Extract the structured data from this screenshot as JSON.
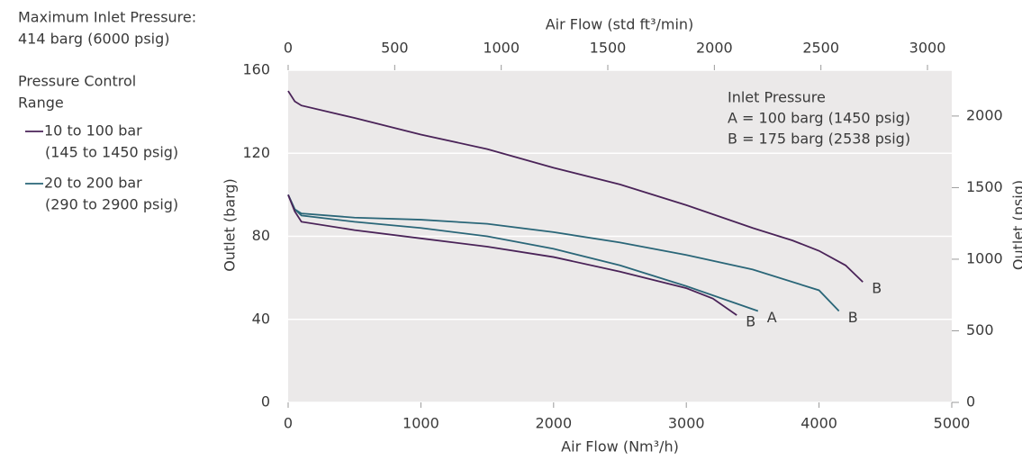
{
  "chart_data": {
    "type": "line",
    "notes": {
      "max_inlet": [
        "Maximum Inlet Pressure:",
        "414 barg (6000 psig)"
      ],
      "range_title": [
        "Pressure Control",
        "Range"
      ],
      "inlet": [
        "Inlet Pressure",
        "A = 100 barg (1450 psig)",
        "B = 175 barg (2538 psig)"
      ]
    },
    "legend": [
      {
        "label": [
          "10 to 100 bar",
          "(145 to 1450 psig)"
        ],
        "color": "#4a2358"
      },
      {
        "label": [
          "20 to 200 bar",
          "(290 to 2900 psig)"
        ],
        "color": "#2a6678"
      }
    ],
    "x_label": "Air Flow (Nm³/h)",
    "x2_label": "Air Flow (std ft³/min)",
    "y_label": "Outlet (barg)",
    "y2_label": "Outlet (psig)",
    "xlim": [
      0,
      5000
    ],
    "xticks": [
      0,
      1000,
      2000,
      3000,
      4000,
      5000
    ],
    "x2lim": [
      0,
      3114
    ],
    "x2ticks": [
      0,
      500,
      1000,
      1500,
      2000,
      2500,
      3000
    ],
    "ylim": [
      0,
      160
    ],
    "yticks": [
      0,
      40,
      80,
      120,
      160
    ],
    "y2lim": [
      0,
      2320
    ],
    "y2ticks": [
      0,
      500,
      1000,
      1500,
      2000
    ],
    "grid": true,
    "series": [
      {
        "color": "#4a2358",
        "end_label": "B",
        "x": [
          0,
          50,
          100,
          500,
          1000,
          1500,
          2000,
          2500,
          3000,
          3500,
          3800,
          4000,
          4200,
          4330
        ],
        "values": [
          150,
          145,
          143,
          137,
          129,
          122,
          113,
          105,
          95,
          84,
          78,
          73,
          66,
          58
        ]
      },
      {
        "color": "#2a6678",
        "end_label": "B",
        "x": [
          0,
          50,
          100,
          500,
          1000,
          1500,
          2000,
          2500,
          3000,
          3500,
          4000,
          4150
        ],
        "values": [
          100,
          93,
          91,
          89,
          88,
          86,
          82,
          77,
          71,
          64,
          54,
          44
        ]
      },
      {
        "color": "#2a6678",
        "end_label": "A",
        "x": [
          0,
          50,
          100,
          500,
          1000,
          1500,
          2000,
          2500,
          3000,
          3540
        ],
        "values": [
          100,
          93,
          90,
          87,
          84,
          80,
          74,
          66,
          56,
          44
        ]
      },
      {
        "color": "#4a2358",
        "end_label": "B",
        "x": [
          0,
          50,
          100,
          500,
          1000,
          1500,
          2000,
          2500,
          3000,
          3200,
          3380
        ],
        "values": [
          100,
          92,
          87,
          83,
          79,
          75,
          70,
          63,
          55,
          50,
          42
        ]
      }
    ]
  }
}
